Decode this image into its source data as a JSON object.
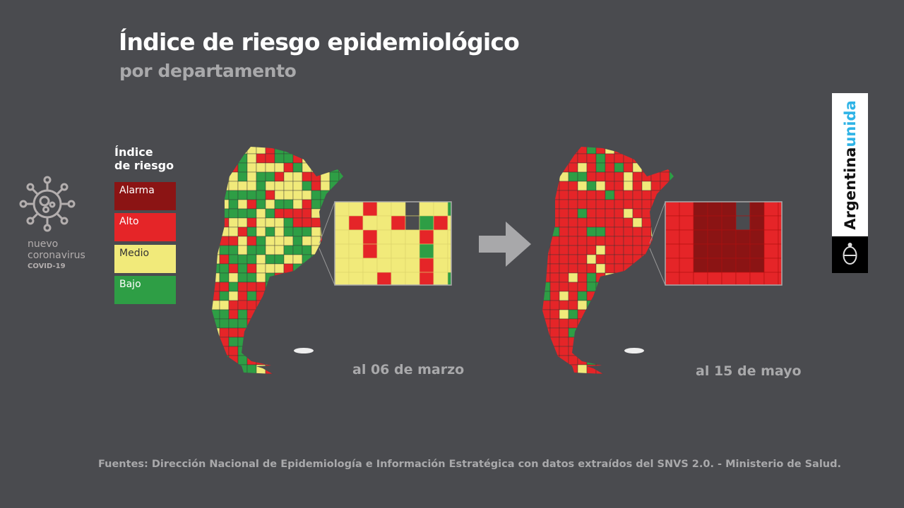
{
  "title": "Índice de riesgo epidemiológico",
  "subtitle": "por departamento",
  "logo": {
    "line1": "nuevo",
    "line2": "coronavirus",
    "line3": "COVID-19",
    "icon": "virus-icon"
  },
  "legend": {
    "title_line1": "Índice",
    "title_line2": "de riesgo",
    "items": [
      {
        "label": "Alarma",
        "color": "#8b1414",
        "text_color": "#ffffff"
      },
      {
        "label": "Alto",
        "color": "#e52528",
        "text_color": "#ffffff"
      },
      {
        "label": "Medio",
        "color": "#f1ea7a",
        "text_color": "#333333"
      },
      {
        "label": "Bajo",
        "color": "#2e9e45",
        "text_color": "#ffffff"
      }
    ]
  },
  "maps": [
    {
      "date_label": "al 06 de marzo",
      "dominant": "mixed"
    },
    {
      "date_label": "al 15 de mayo",
      "dominant": "Alto"
    }
  ],
  "arrow_icon": "arrow-right-icon",
  "brand": {
    "word1": "Argentina",
    "word2": "unida",
    "emblem": "coat-of-arms-icon"
  },
  "source": "Fuentes: Dirección Nacional de Epidemiología e Información Estratégica con datos extraídos del SNVS 2.0. - Ministerio de Salud."
}
